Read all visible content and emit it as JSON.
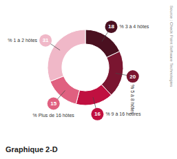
{
  "chart_data": {
    "type": "donut",
    "title": "Graphique 2-D",
    "categories": [
      "% 3 à 4 hôtes",
      "% 5 à 8 hôtes",
      "% 9 à 16 heures",
      "% Plus de 16 hôtes",
      "% 1 à 2 hôtes"
    ],
    "values": [
      18,
      20,
      16,
      15,
      31
    ],
    "colors": [
      "#4a1020",
      "#7a1530",
      "#c01040",
      "#e06080",
      "#f0b8c8"
    ],
    "data_labels": true,
    "annotations": [
      "Source : Check Point Software Technologies"
    ]
  }
}
